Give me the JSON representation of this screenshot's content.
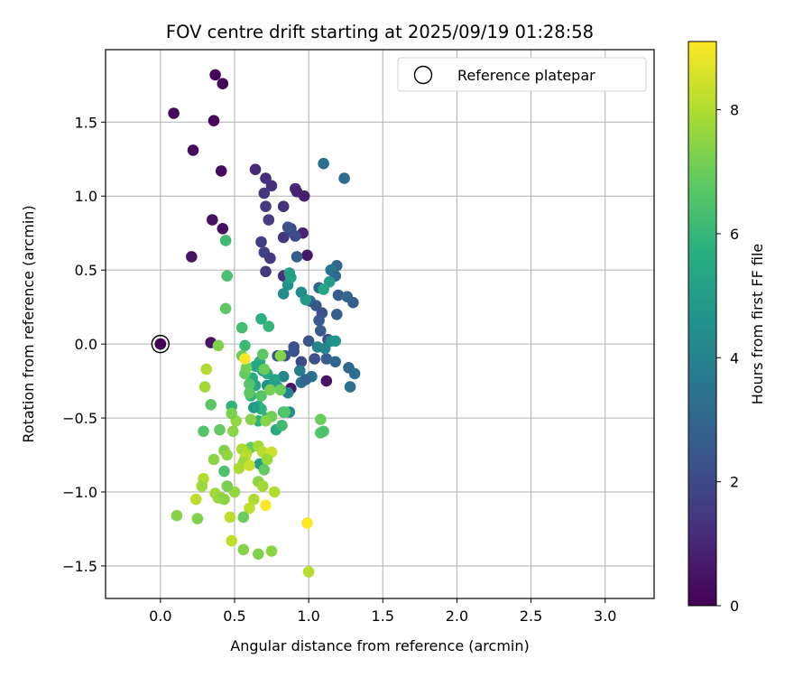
{
  "chart_data": {
    "type": "scatter",
    "title": "FOV centre drift starting at 2025/09/19 01:28:58",
    "xlabel": "Angular distance from reference (arcmin)",
    "ylabel": "Rotation from reference (arcmin)",
    "xlim": [
      -0.37,
      3.33
    ],
    "ylim": [
      -1.72,
      1.99
    ],
    "xticks": [
      0.0,
      0.5,
      1.0,
      1.5,
      2.0,
      2.5,
      3.0
    ],
    "xtick_labels": [
      "0.0",
      "0.5",
      "1.0",
      "1.5",
      "2.0",
      "2.5",
      "3.0"
    ],
    "yticks": [
      -1.5,
      -1.0,
      -0.5,
      0.0,
      0.5,
      1.0,
      1.5
    ],
    "ytick_labels": [
      "−1.5",
      "−1.0",
      "−0.5",
      "0.0",
      "0.5",
      "1.0",
      "1.5"
    ],
    "grid": true,
    "legend": {
      "placement": "upper-right",
      "entries": [
        "Reference platepar"
      ]
    },
    "reference_point": {
      "x": 0.0,
      "y": 0.0,
      "hours": 0.0
    },
    "colorbar": {
      "label": "Hours from first FF file",
      "min": 0,
      "max": 9.1,
      "ticks": [
        0,
        2,
        4,
        6,
        8
      ],
      "tick_labels": [
        "0",
        "2",
        "4",
        "6",
        "8"
      ],
      "colormap": "viridis"
    },
    "points": [
      [
        0.37,
        1.82,
        0.1
      ],
      [
        0.42,
        1.76,
        0.1
      ],
      [
        0.09,
        1.56,
        0.2
      ],
      [
        0.36,
        1.51,
        0.2
      ],
      [
        0.22,
        1.31,
        0.3
      ],
      [
        0.41,
        1.17,
        0.3
      ],
      [
        0.35,
        0.84,
        0.4
      ],
      [
        0.42,
        0.78,
        0.4
      ],
      [
        0.21,
        0.59,
        0.5
      ],
      [
        0.34,
        0.01,
        0.5
      ],
      [
        0.0,
        0.0,
        0.2
      ],
      [
        0.99,
        0.6,
        0.6
      ],
      [
        1.12,
        -0.25,
        0.5
      ],
      [
        0.88,
        -0.3,
        0.6
      ],
      [
        0.64,
        1.18,
        1.0
      ],
      [
        0.71,
        1.12,
        1.2
      ],
      [
        0.75,
        1.07,
        1.2
      ],
      [
        0.7,
        1.02,
        1.4
      ],
      [
        0.91,
        1.05,
        1.1
      ],
      [
        0.92,
        1.03,
        0.9
      ],
      [
        0.97,
        1.0,
        0.8
      ],
      [
        0.83,
        0.93,
        1.3
      ],
      [
        0.71,
        0.93,
        1.5
      ],
      [
        0.73,
        0.84,
        1.6
      ],
      [
        0.88,
        0.78,
        1.7
      ],
      [
        0.96,
        0.75,
        0.9
      ],
      [
        0.83,
        0.72,
        1.4
      ],
      [
        0.68,
        0.69,
        1.6
      ],
      [
        0.7,
        0.62,
        1.8
      ],
      [
        0.74,
        0.58,
        1.4
      ],
      [
        0.71,
        0.49,
        1.5
      ],
      [
        0.83,
        0.46,
        1.2
      ],
      [
        0.88,
        0.76,
        2.0
      ],
      [
        0.91,
        0.73,
        2.1
      ],
      [
        0.86,
        0.79,
        2.2
      ],
      [
        1.1,
        1.22,
        3.3
      ],
      [
        1.24,
        1.12,
        3.2
      ],
      [
        0.92,
        0.59,
        2.8
      ],
      [
        1.19,
        0.53,
        3.0
      ],
      [
        1.15,
        0.5,
        3.5
      ],
      [
        1.18,
        0.46,
        3.1
      ],
      [
        1.07,
        0.38,
        3.0
      ],
      [
        1.2,
        0.33,
        2.7
      ],
      [
        1.26,
        0.32,
        3.1
      ],
      [
        1.3,
        0.28,
        2.8
      ],
      [
        1.01,
        0.29,
        3.2
      ],
      [
        1.05,
        0.26,
        2.5
      ],
      [
        1.09,
        0.21,
        2.3
      ],
      [
        1.07,
        0.16,
        2.6
      ],
      [
        1.19,
        0.2,
        2.8
      ],
      [
        1.08,
        0.09,
        2.6
      ],
      [
        1.13,
        0.03,
        2.1
      ],
      [
        1.0,
        0.02,
        2.4
      ],
      [
        0.9,
        -0.02,
        2.2
      ],
      [
        0.9,
        -0.05,
        2.3
      ],
      [
        0.84,
        -0.08,
        2.5
      ],
      [
        0.79,
        -0.08,
        2.4
      ],
      [
        0.95,
        -0.12,
        2.0
      ],
      [
        1.04,
        -0.1,
        2.2
      ],
      [
        1.12,
        -0.1,
        2.7
      ],
      [
        1.18,
        -0.12,
        3.1
      ],
      [
        1.27,
        -0.16,
        3.0
      ],
      [
        1.31,
        -0.2,
        3.3
      ],
      [
        1.28,
        -0.29,
        3.3
      ],
      [
        0.95,
        -0.26,
        3.4
      ],
      [
        1.02,
        -0.22,
        3.5
      ],
      [
        0.94,
        -0.18,
        3.8
      ],
      [
        1.06,
        -0.02,
        4.0
      ],
      [
        1.11,
        -0.03,
        4.1
      ],
      [
        1.15,
        0.02,
        4.3
      ],
      [
        1.18,
        0.02,
        4.7
      ],
      [
        0.83,
        0.34,
        4.4
      ],
      [
        0.86,
        0.4,
        4.6
      ],
      [
        0.88,
        0.45,
        5.2
      ],
      [
        0.87,
        0.48,
        5.1
      ],
      [
        0.98,
        0.3,
        4.9
      ],
      [
        0.95,
        0.35,
        4.5
      ],
      [
        1.14,
        0.42,
        5.0
      ],
      [
        1.1,
        0.37,
        5.4
      ],
      [
        0.83,
        -0.22,
        4.2
      ],
      [
        0.86,
        -0.33,
        4.0
      ],
      [
        0.87,
        -0.46,
        4.4
      ],
      [
        0.72,
        -0.28,
        4.6
      ],
      [
        0.67,
        -0.12,
        5.5
      ],
      [
        0.69,
        -0.18,
        5.2
      ],
      [
        0.72,
        -0.2,
        5.6
      ],
      [
        0.77,
        -0.24,
        5.3
      ],
      [
        0.79,
        -0.29,
        5.0
      ],
      [
        0.64,
        -0.15,
        5.4
      ],
      [
        0.62,
        -0.23,
        5.6
      ],
      [
        0.64,
        -0.28,
        5.3
      ],
      [
        0.66,
        -0.42,
        5.5
      ],
      [
        0.68,
        -0.44,
        5.8
      ],
      [
        0.63,
        -0.43,
        5.0
      ],
      [
        0.61,
        -0.35,
        5.9
      ],
      [
        0.66,
        -0.52,
        5.8
      ],
      [
        0.72,
        -0.5,
        6.0
      ],
      [
        0.78,
        -0.58,
        5.6
      ],
      [
        0.82,
        -0.55,
        6.2
      ],
      [
        0.83,
        -0.46,
        6.0
      ],
      [
        0.67,
        -0.81,
        5.0
      ],
      [
        0.48,
        -0.42,
        5.9
      ],
      [
        0.68,
        0.17,
        5.7
      ],
      [
        0.73,
        0.12,
        6.0
      ],
      [
        0.55,
        0.11,
        6.3
      ],
      [
        0.57,
        -0.01,
        6.1
      ],
      [
        0.44,
        0.7,
        6.2
      ],
      [
        0.45,
        0.46,
        6.4
      ],
      [
        0.44,
        0.24,
        6.8
      ],
      [
        0.39,
        -0.01,
        7.3
      ],
      [
        0.57,
        -0.2,
        6.9
      ],
      [
        0.6,
        -0.27,
        6.6
      ],
      [
        0.6,
        -0.33,
        6.8
      ],
      [
        0.58,
        -0.16,
        7.1
      ],
      [
        0.55,
        -0.08,
        7.0
      ],
      [
        0.69,
        -0.07,
        6.8
      ],
      [
        0.7,
        -0.17,
        7.0
      ],
      [
        0.74,
        -0.31,
        7.2
      ],
      [
        0.68,
        -0.35,
        6.6
      ],
      [
        0.81,
        -0.08,
        7.4
      ],
      [
        0.81,
        -0.31,
        7.0
      ],
      [
        0.84,
        -0.46,
        6.6
      ],
      [
        0.75,
        -0.49,
        7.1
      ],
      [
        0.71,
        -0.52,
        7.4
      ],
      [
        0.61,
        -0.51,
        7.4
      ],
      [
        0.51,
        -0.52,
        7.6
      ],
      [
        0.49,
        -0.59,
        7.5
      ],
      [
        0.48,
        -0.47,
        7.2
      ],
      [
        0.29,
        -0.59,
        6.6
      ],
      [
        0.34,
        -0.41,
        6.8
      ],
      [
        0.31,
        -0.17,
        8.0
      ],
      [
        0.3,
        -0.29,
        7.8
      ],
      [
        0.4,
        -0.58,
        6.9
      ],
      [
        0.61,
        -0.7,
        6.9
      ],
      [
        0.43,
        -0.72,
        7.3
      ],
      [
        0.45,
        -0.75,
        7.6
      ],
      [
        0.55,
        -0.71,
        7.9
      ],
      [
        0.58,
        -0.74,
        8.0
      ],
      [
        0.57,
        -0.77,
        8.2
      ],
      [
        0.56,
        -0.8,
        7.7
      ],
      [
        0.53,
        -0.84,
        7.9
      ],
      [
        0.6,
        -0.82,
        8.3
      ],
      [
        0.66,
        -0.69,
        7.8
      ],
      [
        0.69,
        -0.73,
        8.1
      ],
      [
        0.75,
        -0.73,
        8.4
      ],
      [
        0.72,
        -0.78,
        7.7
      ],
      [
        0.7,
        -0.85,
        6.9
      ],
      [
        0.66,
        -0.93,
        7.5
      ],
      [
        0.69,
        -0.96,
        7.8
      ],
      [
        0.63,
        -1.05,
        8.0
      ],
      [
        0.6,
        -1.11,
        8.2
      ],
      [
        0.56,
        -1.17,
        7.0
      ],
      [
        0.47,
        -1.17,
        8.2
      ],
      [
        0.48,
        -1.33,
        8.2
      ],
      [
        0.56,
        -1.39,
        7.4
      ],
      [
        0.66,
        -1.42,
        7.3
      ],
      [
        0.75,
        -1.4,
        7.5
      ],
      [
        0.77,
        -1.0,
        8.0
      ],
      [
        0.5,
        -1.0,
        7.6
      ],
      [
        0.45,
        -0.96,
        7.2
      ],
      [
        0.43,
        -0.86,
        6.5
      ],
      [
        0.36,
        -0.78,
        7.5
      ],
      [
        0.37,
        -1.01,
        7.8
      ],
      [
        0.39,
        -1.04,
        7.7
      ],
      [
        0.41,
        -1.04,
        7.6
      ],
      [
        0.43,
        -1.05,
        7.5
      ],
      [
        0.29,
        -0.91,
        8.0
      ],
      [
        0.28,
        -0.96,
        7.7
      ],
      [
        0.24,
        -1.05,
        8.2
      ],
      [
        0.25,
        -1.18,
        7.3
      ],
      [
        0.11,
        -1.16,
        7.4
      ],
      [
        0.57,
        -0.1,
        9.0
      ],
      [
        0.71,
        -1.09,
        9.1
      ],
      [
        0.99,
        -1.21,
        9.1
      ],
      [
        1.0,
        -1.54,
        8.1
      ],
      [
        1.08,
        -0.6,
        6.7
      ],
      [
        1.1,
        -0.59,
        6.5
      ],
      [
        1.08,
        -0.51,
        7.0
      ],
      [
        0.98,
        -0.24,
        2.9
      ]
    ]
  }
}
